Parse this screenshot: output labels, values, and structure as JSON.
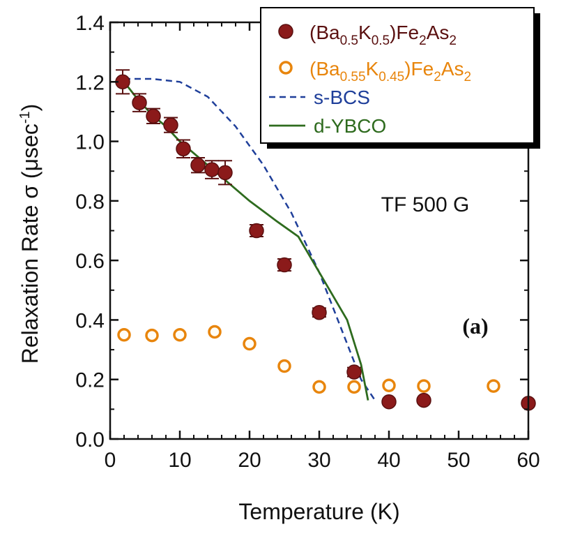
{
  "chart_data": {
    "type": "scatter",
    "title": "",
    "xlabel": "Temperature (K)",
    "ylabel": "Relaxation Rate σ (μsec-1)",
    "ylabel_main": "Relaxation Rate σ (μsec",
    "ylabel_sup": "-1",
    "ylabel_close": ")",
    "xlim": [
      0,
      60
    ],
    "ylim": [
      0,
      1.4
    ],
    "xticks": [
      0,
      10,
      20,
      30,
      40,
      50,
      60
    ],
    "yticks": [
      0.0,
      0.2,
      0.4,
      0.6,
      0.8,
      1.0,
      1.2,
      1.4
    ],
    "xtick_labels": [
      "0",
      "10",
      "20",
      "30",
      "40",
      "50",
      "60"
    ],
    "ytick_labels": [
      "0.0",
      "0.2",
      "0.4",
      "0.6",
      "0.8",
      "1.0",
      "1.2",
      "1.4"
    ],
    "annotation": "TF 500 G",
    "panel_label": "(a)",
    "legend_position": "top-right",
    "colors": {
      "filled": "#8b1a1a",
      "open": "#e8850c",
      "legend_filled_text": "#5a1010",
      "legend_open_text": "#e8850c",
      "sbcs": "#1f3f9a",
      "dybco": "#2e6b1e"
    },
    "series": [
      {
        "name": "(Ba0.5K0.5)Fe2As2",
        "label_parts": [
          [
            "(Ba",
            ""
          ],
          [
            "0.5",
            "sub"
          ],
          [
            "K",
            ""
          ],
          [
            "0.5",
            "sub"
          ],
          [
            ")Fe",
            ""
          ],
          [
            "2",
            "sub"
          ],
          [
            "As",
            ""
          ],
          [
            "2",
            "sub"
          ]
        ],
        "marker": "filled-circle",
        "x": [
          1.8,
          4.2,
          6.2,
          8.7,
          10.5,
          12.6,
          14.6,
          16.5,
          21.0,
          25.0,
          30.0,
          35.0,
          40.0,
          45.0,
          60.0
        ],
        "y": [
          1.2,
          1.13,
          1.085,
          1.055,
          0.975,
          0.92,
          0.905,
          0.895,
          0.7,
          0.585,
          0.425,
          0.225,
          0.125,
          0.13,
          0.12
        ],
        "err": [
          0.04,
          0.03,
          0.025,
          0.025,
          0.03,
          0.025,
          0.03,
          0.04,
          0.02,
          0.02,
          0.015,
          0.015,
          0.0,
          0.0,
          0.0
        ]
      },
      {
        "name": "(Ba0.55K0.45)Fe2As2",
        "label_parts": [
          [
            "(Ba",
            ""
          ],
          [
            "0.55",
            "sub"
          ],
          [
            "K",
            ""
          ],
          [
            "0.45",
            "sub"
          ],
          [
            ")Fe",
            ""
          ],
          [
            "2",
            "sub"
          ],
          [
            "As",
            ""
          ],
          [
            "2",
            "sub"
          ]
        ],
        "marker": "open-circle",
        "x": [
          2.0,
          6.0,
          10.0,
          15.0,
          20.0,
          25.0,
          30.0,
          35.0,
          40.0,
          45.0,
          55.0
        ],
        "y": [
          0.35,
          0.348,
          0.35,
          0.36,
          0.32,
          0.245,
          0.175,
          0.175,
          0.18,
          0.178,
          0.178
        ]
      },
      {
        "name": "s-BCS",
        "marker": "dashed-line",
        "x": [
          2,
          6,
          10,
          14,
          18,
          22,
          26,
          30,
          33,
          36,
          38
        ],
        "y": [
          1.21,
          1.21,
          1.2,
          1.15,
          1.05,
          0.92,
          0.76,
          0.56,
          0.38,
          0.2,
          0.13
        ]
      },
      {
        "name": "d-YBCO",
        "marker": "solid-line",
        "x": [
          2,
          4,
          6,
          8,
          10,
          12,
          14,
          16,
          18,
          20,
          24,
          27,
          30,
          34,
          36,
          37
        ],
        "y": [
          1.2,
          1.14,
          1.09,
          1.05,
          1.0,
          0.96,
          0.92,
          0.88,
          0.84,
          0.8,
          0.73,
          0.68,
          0.56,
          0.4,
          0.25,
          0.13
        ]
      }
    ]
  }
}
